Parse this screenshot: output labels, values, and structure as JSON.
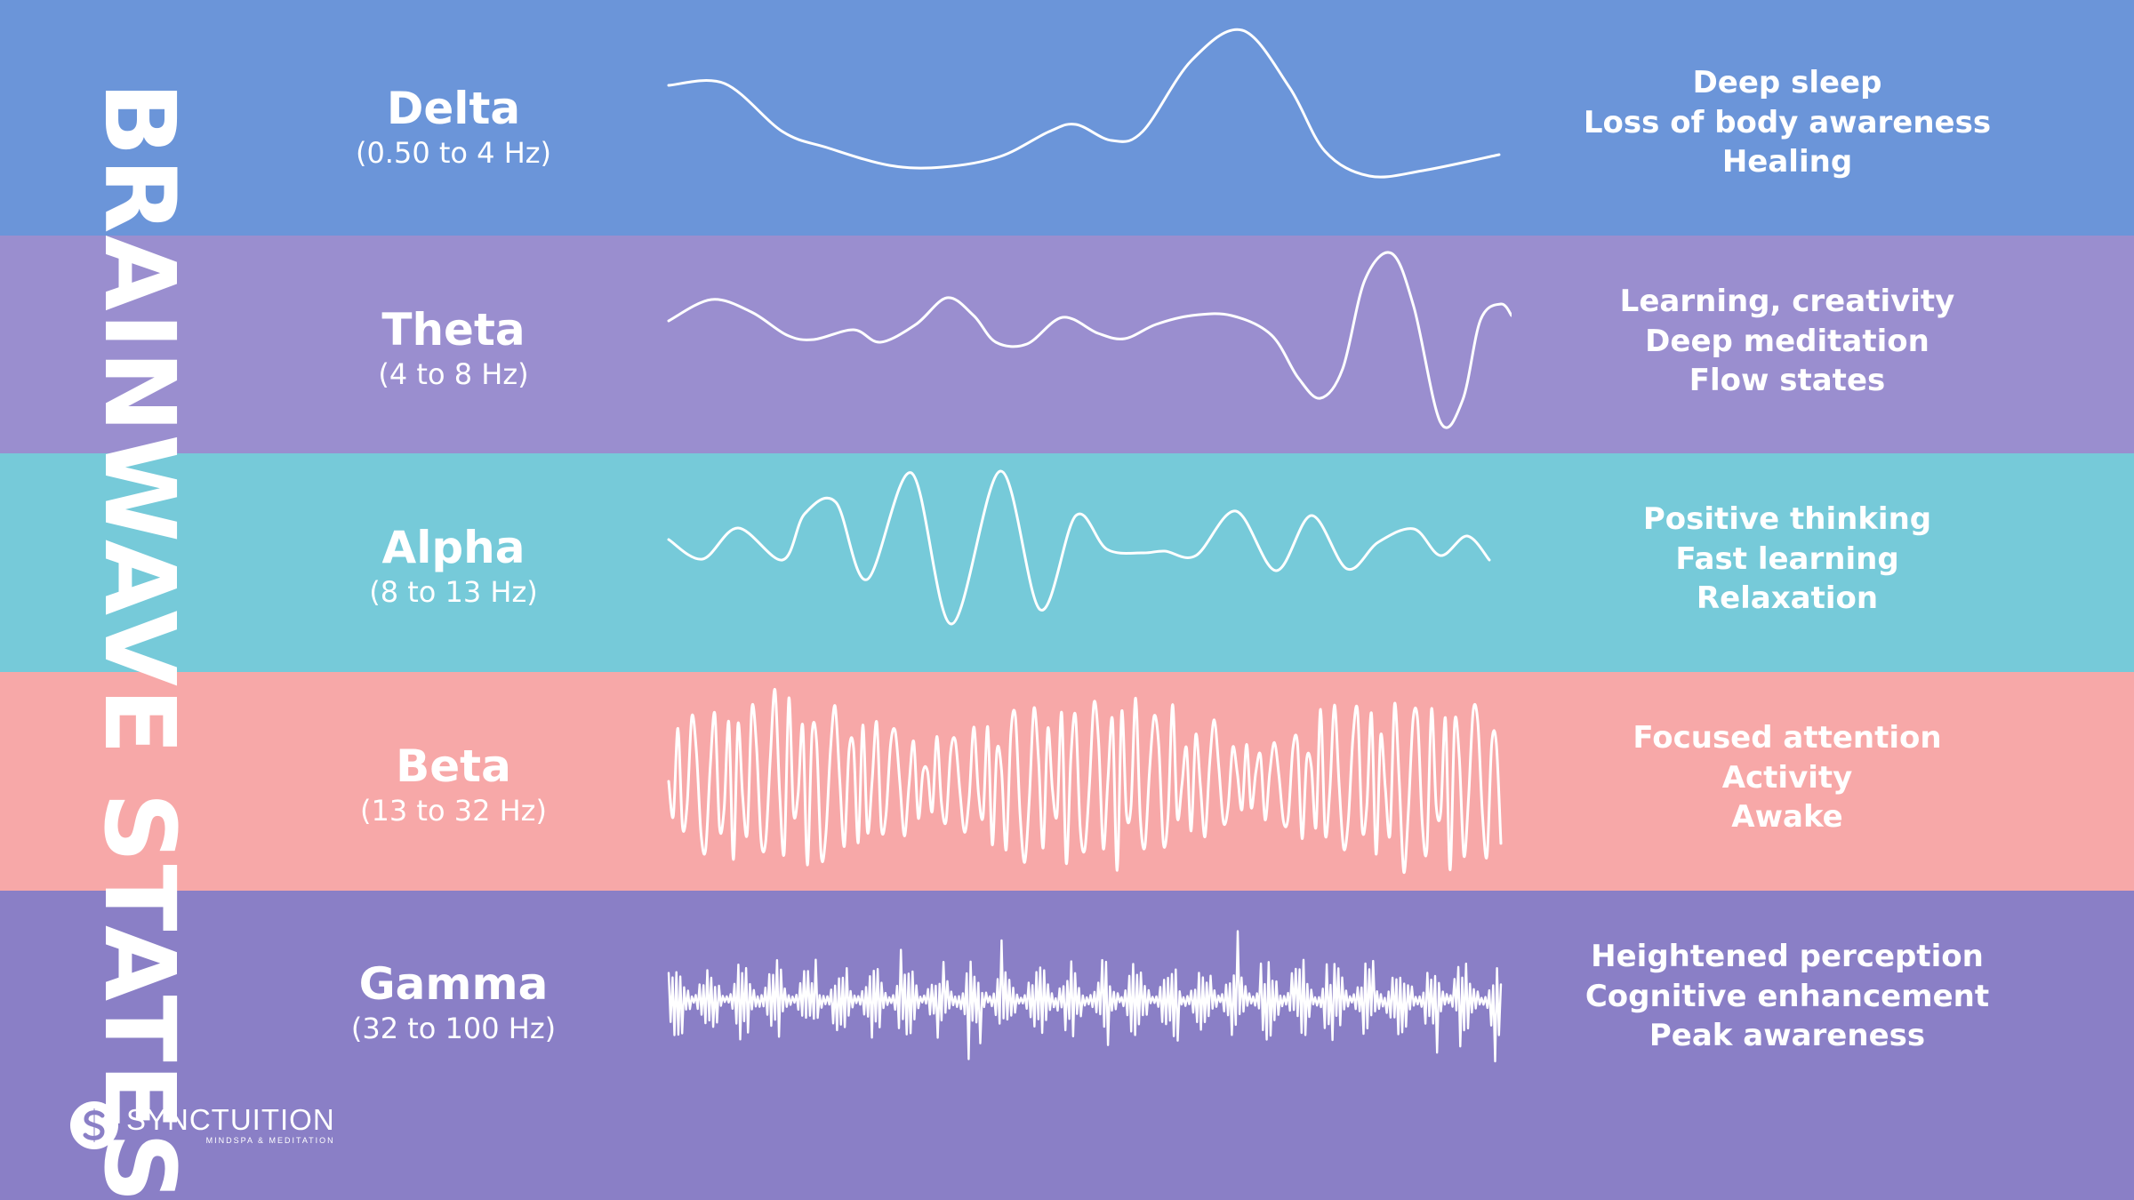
{
  "title": "BRAINWAVE STATES",
  "bands": [
    {
      "name": "Delta",
      "range": "(0.50 to 4 Hz)",
      "color": "#6b95d9",
      "descriptions": [
        "Deep sleep",
        "Loss of body awareness",
        "Healing"
      ],
      "wave_type": "delta"
    },
    {
      "name": "Theta",
      "range": "(4 to 8 Hz)",
      "color": "#9a8ecf",
      "descriptions": [
        "Learning, creativity",
        "Deep meditation",
        "Flow states"
      ],
      "wave_type": "theta"
    },
    {
      "name": "Alpha",
      "range": "(8 to 13 Hz)",
      "color": "#76cad9",
      "descriptions": [
        "Positive thinking",
        "Fast learning",
        "Relaxation"
      ],
      "wave_type": "alpha"
    },
    {
      "name": "Beta",
      "range": "(13 to 32 Hz)",
      "color": "#f7a8a8",
      "descriptions": [
        "Focused attention",
        "Activity",
        "Awake"
      ],
      "wave_type": "beta"
    },
    {
      "name": "Gamma",
      "range": "(32 to 100 Hz)",
      "color": "#8a7fc6",
      "descriptions": [
        "Heightened perception",
        "Cognitive enhancement",
        "Peak awareness"
      ],
      "wave_type": "gamma"
    }
  ],
  "logo": {
    "name": "SYNCTUITION",
    "tagline": "MINDSPA & MEDITATION",
    "icon": "synctuition-s-logo-icon"
  }
}
